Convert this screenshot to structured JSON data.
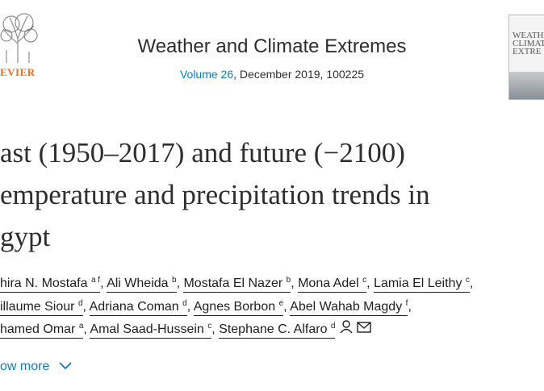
{
  "header": {
    "journal": "Weather and Climate Extremes",
    "volume_link": "Volume 26",
    "volume_rest": ", December 2019, 100225",
    "logo_text": "EVIER",
    "cover_lines": [
      "WEATHE",
      "CLIMATE",
      "EXTRE"
    ]
  },
  "article": {
    "title_lines": [
      "ast (1950–2017) and future (−2100)",
      "emperature and precipitation trends in",
      "gypt"
    ],
    "author_lines": [
      [
        {
          "name": "hira N. Mostafa",
          "sup": "a f"
        },
        {
          "name": "Ali Wheida",
          "sup": "b"
        },
        {
          "name": "Mostafa El Nazer",
          "sup": "b"
        },
        {
          "name": "Mona Adel",
          "sup": "c"
        },
        {
          "name": "Lamia El Leithy",
          "sup": "c"
        }
      ],
      [
        {
          "name": "illaume Siour",
          "sup": "d"
        },
        {
          "name": "Adriana Coman",
          "sup": "d"
        },
        {
          "name": "Agnes Borbon",
          "sup": "e"
        },
        {
          "name": "Abel Wahab Magdy",
          "sup": "f"
        }
      ],
      [
        {
          "name": "hamed Omar",
          "sup": "a"
        },
        {
          "name": "Amal Saad-Hussein",
          "sup": "c"
        },
        {
          "name": "Stephane C. Alfaro",
          "sup": "d"
        }
      ]
    ],
    "show_more": "ow more"
  }
}
